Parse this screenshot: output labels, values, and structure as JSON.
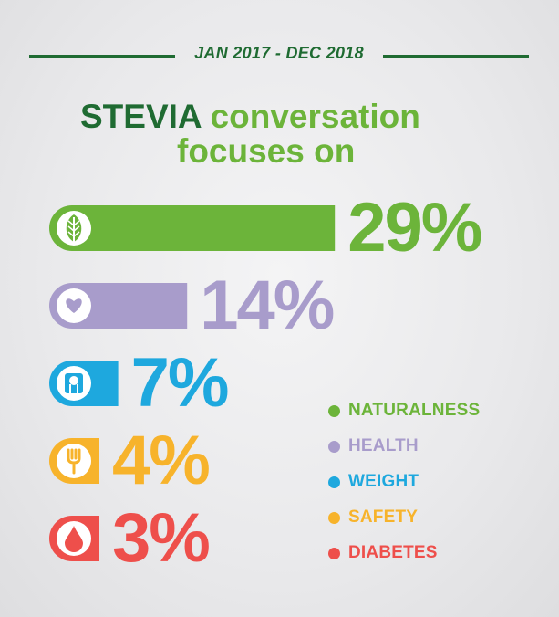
{
  "header": {
    "date_range": "JAN 2017 - DEC 2018",
    "title_brand": "STEVIA",
    "title_rest": "conversation",
    "title_line2": "focuses on"
  },
  "colors": {
    "dark_green": "#1f6b32",
    "naturalness": "#6cb43a",
    "health": "#a89ccb",
    "weight": "#1ea8de",
    "safety": "#f7b32b",
    "diabetes": "#ee4f4b"
  },
  "chart_data": {
    "type": "bar",
    "orientation": "horizontal",
    "categories": [
      "NATURALNESS",
      "HEALTH",
      "WEIGHT",
      "SAFETY",
      "DIABETES"
    ],
    "values": [
      29,
      14,
      7,
      4,
      3
    ],
    "labels": [
      "29%",
      "14%",
      "7%",
      "4%",
      "3%"
    ],
    "icons": [
      "leaf-icon",
      "heart-icon",
      "scale-icon",
      "fork-icon",
      "drop-icon"
    ],
    "colors": [
      "#6cb43a",
      "#a89ccb",
      "#1ea8de",
      "#f7b32b",
      "#ee4f4b"
    ],
    "unit": "%",
    "legend_position": "bottom-right",
    "grid": false
  },
  "legend": {
    "items": [
      {
        "label": "NATURALNESS",
        "color": "#6cb43a"
      },
      {
        "label": "HEALTH",
        "color": "#a89ccb"
      },
      {
        "label": "WEIGHT",
        "color": "#1ea8de"
      },
      {
        "label": "SAFETY",
        "color": "#f7b32b"
      },
      {
        "label": "DIABETES",
        "color": "#ee4f4b"
      }
    ]
  }
}
